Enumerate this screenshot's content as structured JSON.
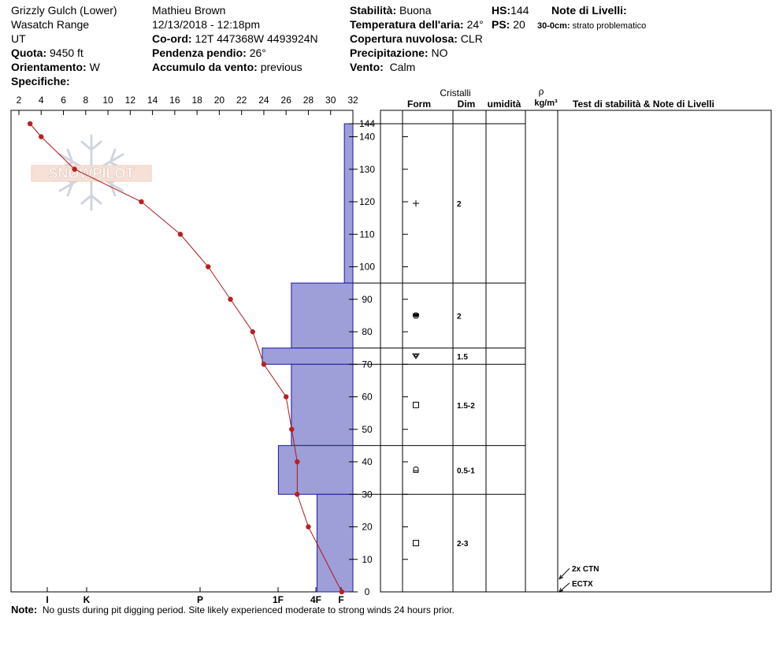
{
  "header": {
    "location": "Grizzly Gulch (Lower)",
    "range": "Wasatch Range",
    "state": "UT",
    "elevation_label": "Quota:",
    "elevation_value": "9450 ft",
    "aspect_label": "Orientamento:",
    "aspect_value": "W",
    "specifics_label": "Specifiche:",
    "observer": "Mathieu Brown",
    "datetime": "12/13/2018 - 12:18pm",
    "coord_label": "Co-ord:",
    "coord_value": "12T 447368W 4493924N",
    "slope_label": "Pendenza pendio:",
    "slope_value": "26°",
    "wind_load_label": "Accumulo da vento:",
    "wind_load_value": "previous",
    "stability_label": "Stabilità:",
    "stability_value": "Buona",
    "air_temp_label": "Temperatura dell'aria:",
    "air_temp_value": "24°",
    "sky_label": "Copertura nuvolosa:",
    "sky_value": "CLR",
    "precip_label": "Precipitazione:",
    "precip_value": "NO",
    "wind_label": "Vento:",
    "wind_value": "Calm",
    "hs_label": "HS:",
    "hs_value": "144",
    "ps_label": "PS:",
    "ps_value": "20",
    "layer_notes_label": "Note di Livelli:",
    "layer_note_depth": "30-0cm:",
    "layer_note_text": "strato problematico"
  },
  "table_headers": {
    "crystals": "Cristalli",
    "form": "Form",
    "dim": "Dim",
    "humidity": "umidità",
    "rho": "ρ",
    "density_unit": "kg/m³",
    "stability_notes": "Test di stabilità & Note di Livelli"
  },
  "note": {
    "label": "Note:",
    "text": "No gusts during pit digging period.  Site likely experienced moderate to strong winds 24 hours prior."
  },
  "logo_text": "SNOWPILOT",
  "colors": {
    "hardness_fill": "#9e9ed8",
    "hardness_stroke": "#1a1aa0",
    "temp_line": "#b01818",
    "temp_point": "#b82020"
  },
  "chart_data": {
    "type": "snow-profile",
    "temperature_axis": {
      "ticks": [
        "2",
        "4",
        "6",
        "8",
        "10",
        "12",
        "14",
        "16",
        "18",
        "20",
        "22",
        "24",
        "26",
        "28",
        "30",
        "32"
      ],
      "range": [
        2,
        32
      ]
    },
    "depth_axis": {
      "ticks": [
        "0",
        "10",
        "20",
        "30",
        "40",
        "50",
        "60",
        "70",
        "80",
        "90",
        "100",
        "110",
        "120",
        "130",
        "140",
        "144"
      ],
      "range": [
        0,
        144
      ]
    },
    "hardness_axis": {
      "labels": [
        "I",
        "K",
        "P",
        "1F",
        "4F",
        "F"
      ]
    },
    "temperature_profile": [
      {
        "depth": 144,
        "temp": 3.0
      },
      {
        "depth": 140,
        "temp": 4.0
      },
      {
        "depth": 130,
        "temp": 7.0
      },
      {
        "depth": 120,
        "temp": 13.0
      },
      {
        "depth": 110,
        "temp": 16.5
      },
      {
        "depth": 100,
        "temp": 19.0
      },
      {
        "depth": 90,
        "temp": 21.0
      },
      {
        "depth": 80,
        "temp": 23.0
      },
      {
        "depth": 70,
        "temp": 24.0
      },
      {
        "depth": 60,
        "temp": 26.0
      },
      {
        "depth": 50,
        "temp": 26.5
      },
      {
        "depth": 40,
        "temp": 27.0
      },
      {
        "depth": 30,
        "temp": 27.0
      },
      {
        "depth": 20,
        "temp": 28.0
      },
      {
        "depth": 0,
        "temp": 31.0
      }
    ],
    "layers": [
      {
        "top": 144,
        "bottom": 95,
        "hardness_pos": 0.975,
        "form": "+",
        "size": "2"
      },
      {
        "top": 95,
        "bottom": 75,
        "hardness_pos": 0.82,
        "form": "mfcr",
        "size": "2"
      },
      {
        "top": 75,
        "bottom": 70,
        "hardness_pos": 0.735,
        "form": "sh",
        "size": "1.5"
      },
      {
        "top": 70,
        "bottom": 45,
        "hardness_pos": 0.82,
        "form": "box",
        "size": "1.5-2"
      },
      {
        "top": 45,
        "bottom": 30,
        "hardness_pos": 0.782,
        "form": "fc-boxdot",
        "size": "0.5-1"
      },
      {
        "top": 30,
        "bottom": 0,
        "hardness_pos": 0.895,
        "form": "box",
        "size": "2-3"
      }
    ],
    "stability_tests": [
      {
        "label": "2x CTN",
        "depth": 5
      },
      {
        "label": "ECTX",
        "depth": 0
      }
    ]
  }
}
